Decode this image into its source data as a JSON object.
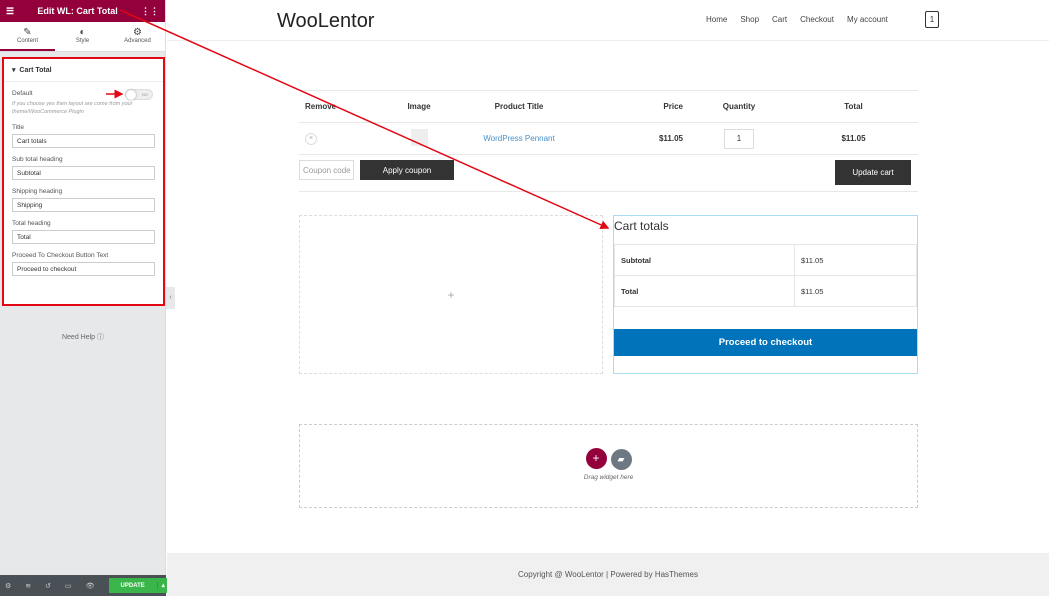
{
  "panel": {
    "title": "Edit WL: Cart Total",
    "tabs": [
      {
        "label": "Content",
        "icon": "pencil-icon"
      },
      {
        "label": "Style",
        "icon": "half-circle-icon"
      },
      {
        "label": "Advanced",
        "icon": "gear-icon"
      }
    ],
    "section": "Cart Total",
    "default_label": "Default",
    "toggle_value": "NO",
    "note": "If you choose yes then layout are come from your theme/WooCommerce Plugin",
    "fields": [
      {
        "label": "Title",
        "value": "Cart totals"
      },
      {
        "label": "Sub total heading",
        "value": "Subtotal"
      },
      {
        "label": "Shipping heading",
        "value": "Shipping"
      },
      {
        "label": "Total heading",
        "value": "Total"
      },
      {
        "label": "Proceed To Checkout Button Text",
        "value": "Proceed to checkout"
      }
    ],
    "help": "Need Help",
    "update": "UPDATE"
  },
  "site": {
    "logo": "WooLentor",
    "nav": [
      "Home",
      "Shop",
      "Cart",
      "Checkout",
      "My account"
    ],
    "cart_count": "1",
    "table": {
      "headers": [
        "Remove",
        "Image",
        "Product Title",
        "Price",
        "Quantity",
        "Total"
      ],
      "row": {
        "title": "WordPress Pennant",
        "price": "$11.05",
        "qty": "1",
        "total": "$11.05"
      }
    },
    "coupon_placeholder": "Coupon code",
    "apply": "Apply coupon",
    "update_cart": "Update cart",
    "totals": {
      "title": "Cart totals",
      "rows": [
        {
          "label": "Subtotal",
          "value": "$11.05"
        },
        {
          "label": "Total",
          "value": "$11.05"
        }
      ],
      "checkout": "Proceed to checkout"
    },
    "drag": "Drag widget here",
    "footer": "Copyright @ WooLentor | Powered by HasThemes"
  },
  "colors": {
    "brand": "#93003c",
    "checkout": "#0073ba",
    "update": "#39b54a",
    "annotation": "#e30613"
  }
}
